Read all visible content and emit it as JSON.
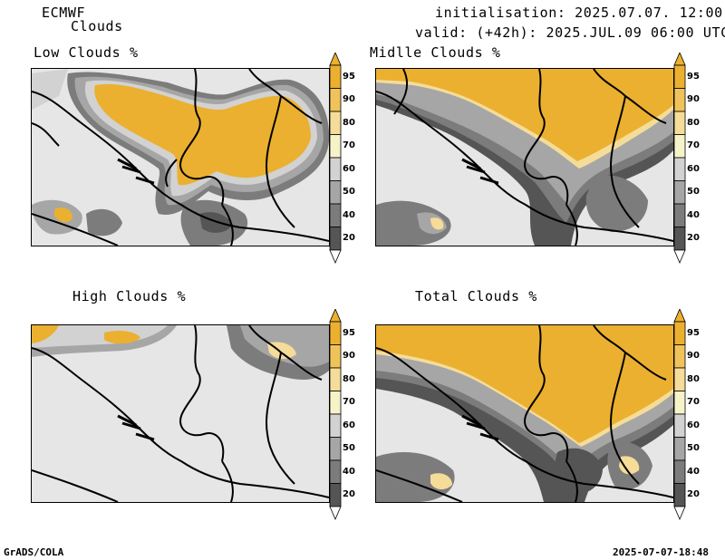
{
  "header": {
    "model": "ECMWF",
    "product": "Clouds",
    "init": "initialisation: 2025.07.07. 12:00 UTC",
    "valid": "valid: (+42h): 2025.JUL.09 06:00 UTC"
  },
  "panels": [
    {
      "title": "Low Clouds %"
    },
    {
      "title": "Midlle Clouds %"
    },
    {
      "title": "High Clouds %"
    },
    {
      "title": "Total Clouds %"
    }
  ],
  "colorbar": {
    "ticks": [
      "95",
      "90",
      "80",
      "70",
      "60",
      "50",
      "40",
      "20"
    ],
    "colors": {
      "c95": "#ebb030",
      "c90": "#f0c35a",
      "c80": "#f5dc98",
      "c70": "#f7f3c8",
      "c60": "#d2d2d2",
      "c50": "#a6a6a6",
      "c40": "#7c7c7c",
      "c20": "#555555"
    }
  },
  "footer": {
    "left": "GrADS/COLA",
    "right": "2025-07-07-18:48"
  }
}
